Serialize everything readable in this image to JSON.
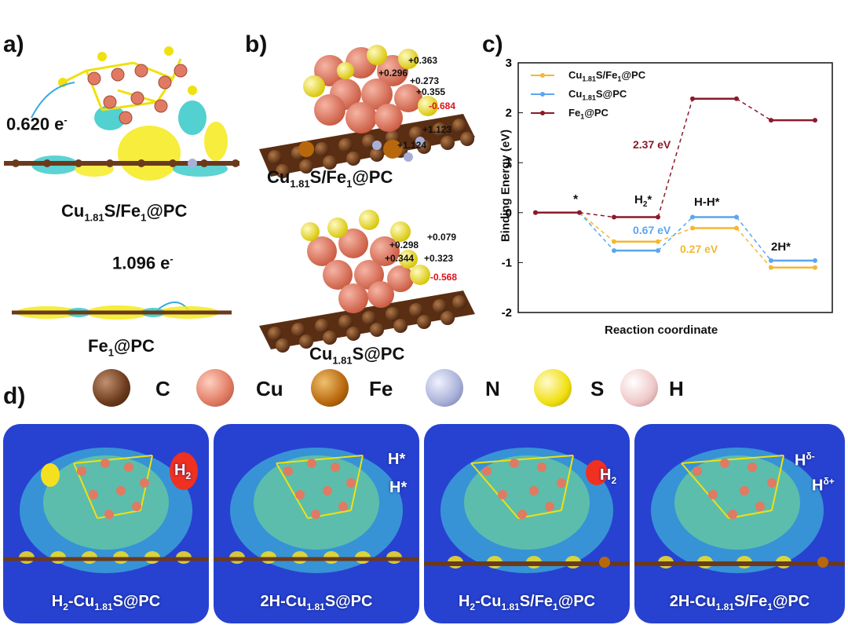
{
  "panel_labels": {
    "a": "a)",
    "b": "b)",
    "c": "c)",
    "d": "d)"
  },
  "panel_a": {
    "caption_top": {
      "main": "Cu",
      "sub": "1.81",
      "rest": "S/Fe",
      "sub2": "1",
      "rest2": "@PC"
    },
    "charge_top": "0.620 e",
    "charge_top_sup": "-",
    "caption_bottom": {
      "main": "Fe",
      "sub": "1",
      "rest": "@PC"
    },
    "charge_bottom": "1.096 e",
    "charge_bottom_sup": "-"
  },
  "panel_b": {
    "top_caption": {
      "main": "Cu",
      "sub": "1.81",
      "rest": "S/Fe",
      "sub2": "1",
      "rest2": "@PC"
    },
    "top_charges": [
      "+0.363",
      "+0.296",
      "+0.273",
      "+0.355",
      "-0.684",
      "+1.123",
      "+1.124"
    ],
    "bottom_caption": {
      "main": "Cu",
      "sub": "1.81",
      "rest": "S@PC"
    },
    "bottom_charges": [
      "+0.079",
      "+0.298",
      "+0.344",
      "+0.323",
      "-0.568"
    ]
  },
  "legend": {
    "atoms": [
      {
        "name": "C",
        "color": "#6b3a1c"
      },
      {
        "name": "Cu",
        "color": "#e07a62"
      },
      {
        "name": "Fe",
        "color": "#b8680c"
      },
      {
        "name": "N",
        "color": "#a8b0d8"
      },
      {
        "name": "S",
        "color": "#f0e010"
      },
      {
        "name": "H",
        "color": "#f0c8c8"
      }
    ]
  },
  "panel_d": {
    "panels": [
      {
        "label_pre": "H",
        "label_pre_sub": "2",
        "label_mid": "-Cu",
        "label_sub": "1.81",
        "label_post": "S@PC"
      },
      {
        "label_pre": "2H",
        "label_pre_sub": "",
        "label_mid": "-Cu",
        "label_sub": "1.81",
        "label_post": "S@PC"
      },
      {
        "label_pre": "H",
        "label_pre_sub": "2",
        "label_mid": "-Cu",
        "label_sub": "1.81",
        "label_post": "S/Fe",
        "label_sub2": "1",
        "label_post2": "@PC"
      },
      {
        "label_pre": "2H",
        "label_pre_sub": "",
        "label_mid": "-Cu",
        "label_sub": "1.81",
        "label_post": "S/Fe",
        "label_sub2": "1",
        "label_post2": "@PC"
      }
    ],
    "annot": {
      "h2": "H",
      "h2_sub": "2",
      "hstar": "H*",
      "hdelta_minus": "H",
      "hdelta_minus_sup": "δ-",
      "hdelta_plus": "H",
      "hdelta_plus_sup": "δ+"
    }
  },
  "chart_data": {
    "type": "line",
    "ylabel": "Binding Energy (eV)",
    "xlabel": "Reaction coordinate",
    "ylim": [
      -2,
      3
    ],
    "yticks": [
      -2,
      -1,
      0,
      1,
      2,
      3
    ],
    "states": [
      "*",
      "H2*",
      "H-H*",
      "2H*"
    ],
    "series": [
      {
        "name": "Cu1.81S/Fe1@PC",
        "color": "#f5b731",
        "values": [
          0,
          -0.58,
          -0.31,
          -1.1
        ]
      },
      {
        "name": "Cu1.81S@PC",
        "color": "#5aa6f0",
        "values": [
          0,
          -0.76,
          -0.09,
          -0.96
        ]
      },
      {
        "name": "Fe1@PC",
        "color": "#8b1a2b",
        "values": [
          0,
          -0.09,
          2.28,
          1.85
        ]
      }
    ],
    "legend_labels": [
      {
        "main": "Cu",
        "sub": "1.81",
        "rest": "S/Fe",
        "sub2": "1",
        "rest2": "@PC"
      },
      {
        "main": "Cu",
        "sub": "1.81",
        "rest": "S@PC"
      },
      {
        "main": "Fe",
        "sub": "1",
        "rest": "@PC"
      }
    ],
    "annotations": {
      "star": "*",
      "h2": "H",
      "h2_sub": "2",
      "h2_star": "*",
      "hh": "H-H*",
      "two_h": "2H*",
      "barrier_fe": "2.37 eV",
      "barrier_cus": "0.67 eV",
      "barrier_cusfe": "0.27 eV"
    }
  }
}
